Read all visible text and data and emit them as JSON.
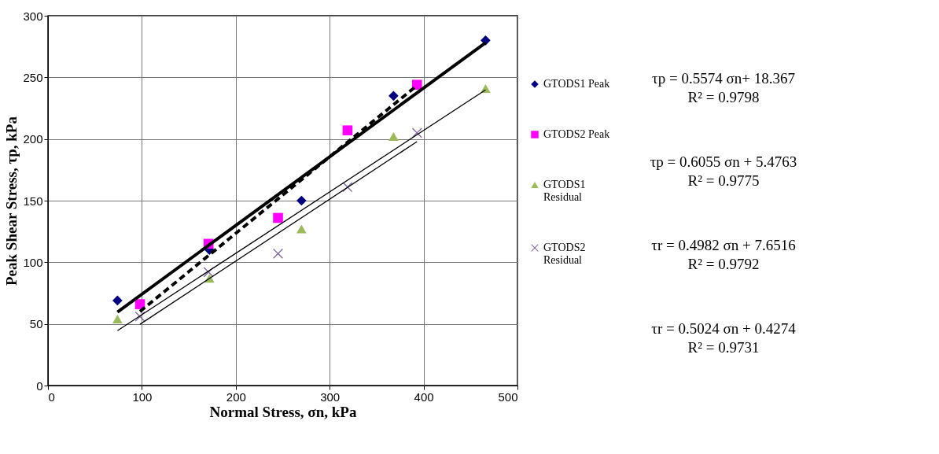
{
  "chart_data": {
    "type": "scatter",
    "xlabel": "Normal Stress, σn, kPa",
    "ylabel": "Peak  Shear Stress, τp, kPa",
    "xlim": [
      0,
      500
    ],
    "xticks": [
      0,
      100,
      200,
      300,
      400,
      500
    ],
    "ylim": [
      0,
      300
    ],
    "yticks": [
      0,
      50,
      100,
      150,
      200,
      250,
      300
    ],
    "grid": true,
    "legend": "right",
    "series": [
      {
        "name": "GTODS1 Peak",
        "marker": "diamond",
        "color": "#000080",
        "x": [
          74,
          172,
          270,
          368,
          466
        ],
        "values": [
          69,
          110,
          150,
          235,
          280
        ]
      },
      {
        "name": "GTODS2 Peak",
        "marker": "square",
        "color": "#ff00ff",
        "x": [
          98,
          171,
          245,
          319,
          393
        ],
        "values": [
          66,
          115,
          136,
          207,
          244
        ]
      },
      {
        "name": "GTODS1 Residual",
        "marker": "triangle",
        "color": "#9bbb59",
        "x": [
          74,
          172,
          270,
          368,
          466
        ],
        "values": [
          54,
          87,
          127,
          202,
          241
        ]
      },
      {
        "name": "GTODS2 Residual",
        "marker": "cross",
        "color": "#8064a2",
        "x": [
          98,
          171,
          245,
          319,
          393
        ],
        "values": [
          56,
          92,
          107,
          161,
          205
        ]
      },
      {
        "type": "line",
        "line_style": "solid",
        "color": "#000000",
        "x": [
          74,
          466
        ],
        "values": [
          59.6,
          278.1
        ]
      },
      {
        "type": "line",
        "line_style": "dashed",
        "color": "#000000",
        "x": [
          98,
          393
        ],
        "values": [
          60.1,
          243.4
        ]
      },
      {
        "type": "line",
        "line_style": "solid",
        "color": "#000000",
        "x": [
          74,
          466
        ],
        "values": [
          44.5,
          239.8
        ]
      },
      {
        "type": "line",
        "line_style": "solid",
        "color": "#000000",
        "x": [
          98,
          393
        ],
        "values": [
          49.7,
          197.9
        ]
      }
    ],
    "annotations": [
      "τp = 0.5574 σn+ 18.367",
      "R² = 0.9798",
      "τp  = 0.6055 σn + 5.4763",
      "R² = 0.9775",
      "τr   = 0.4982 σn + 7.6516",
      "R² = 0.9792",
      "τr    = 0.5024 σn + 0.4274",
      "R² = 0.9731"
    ]
  }
}
